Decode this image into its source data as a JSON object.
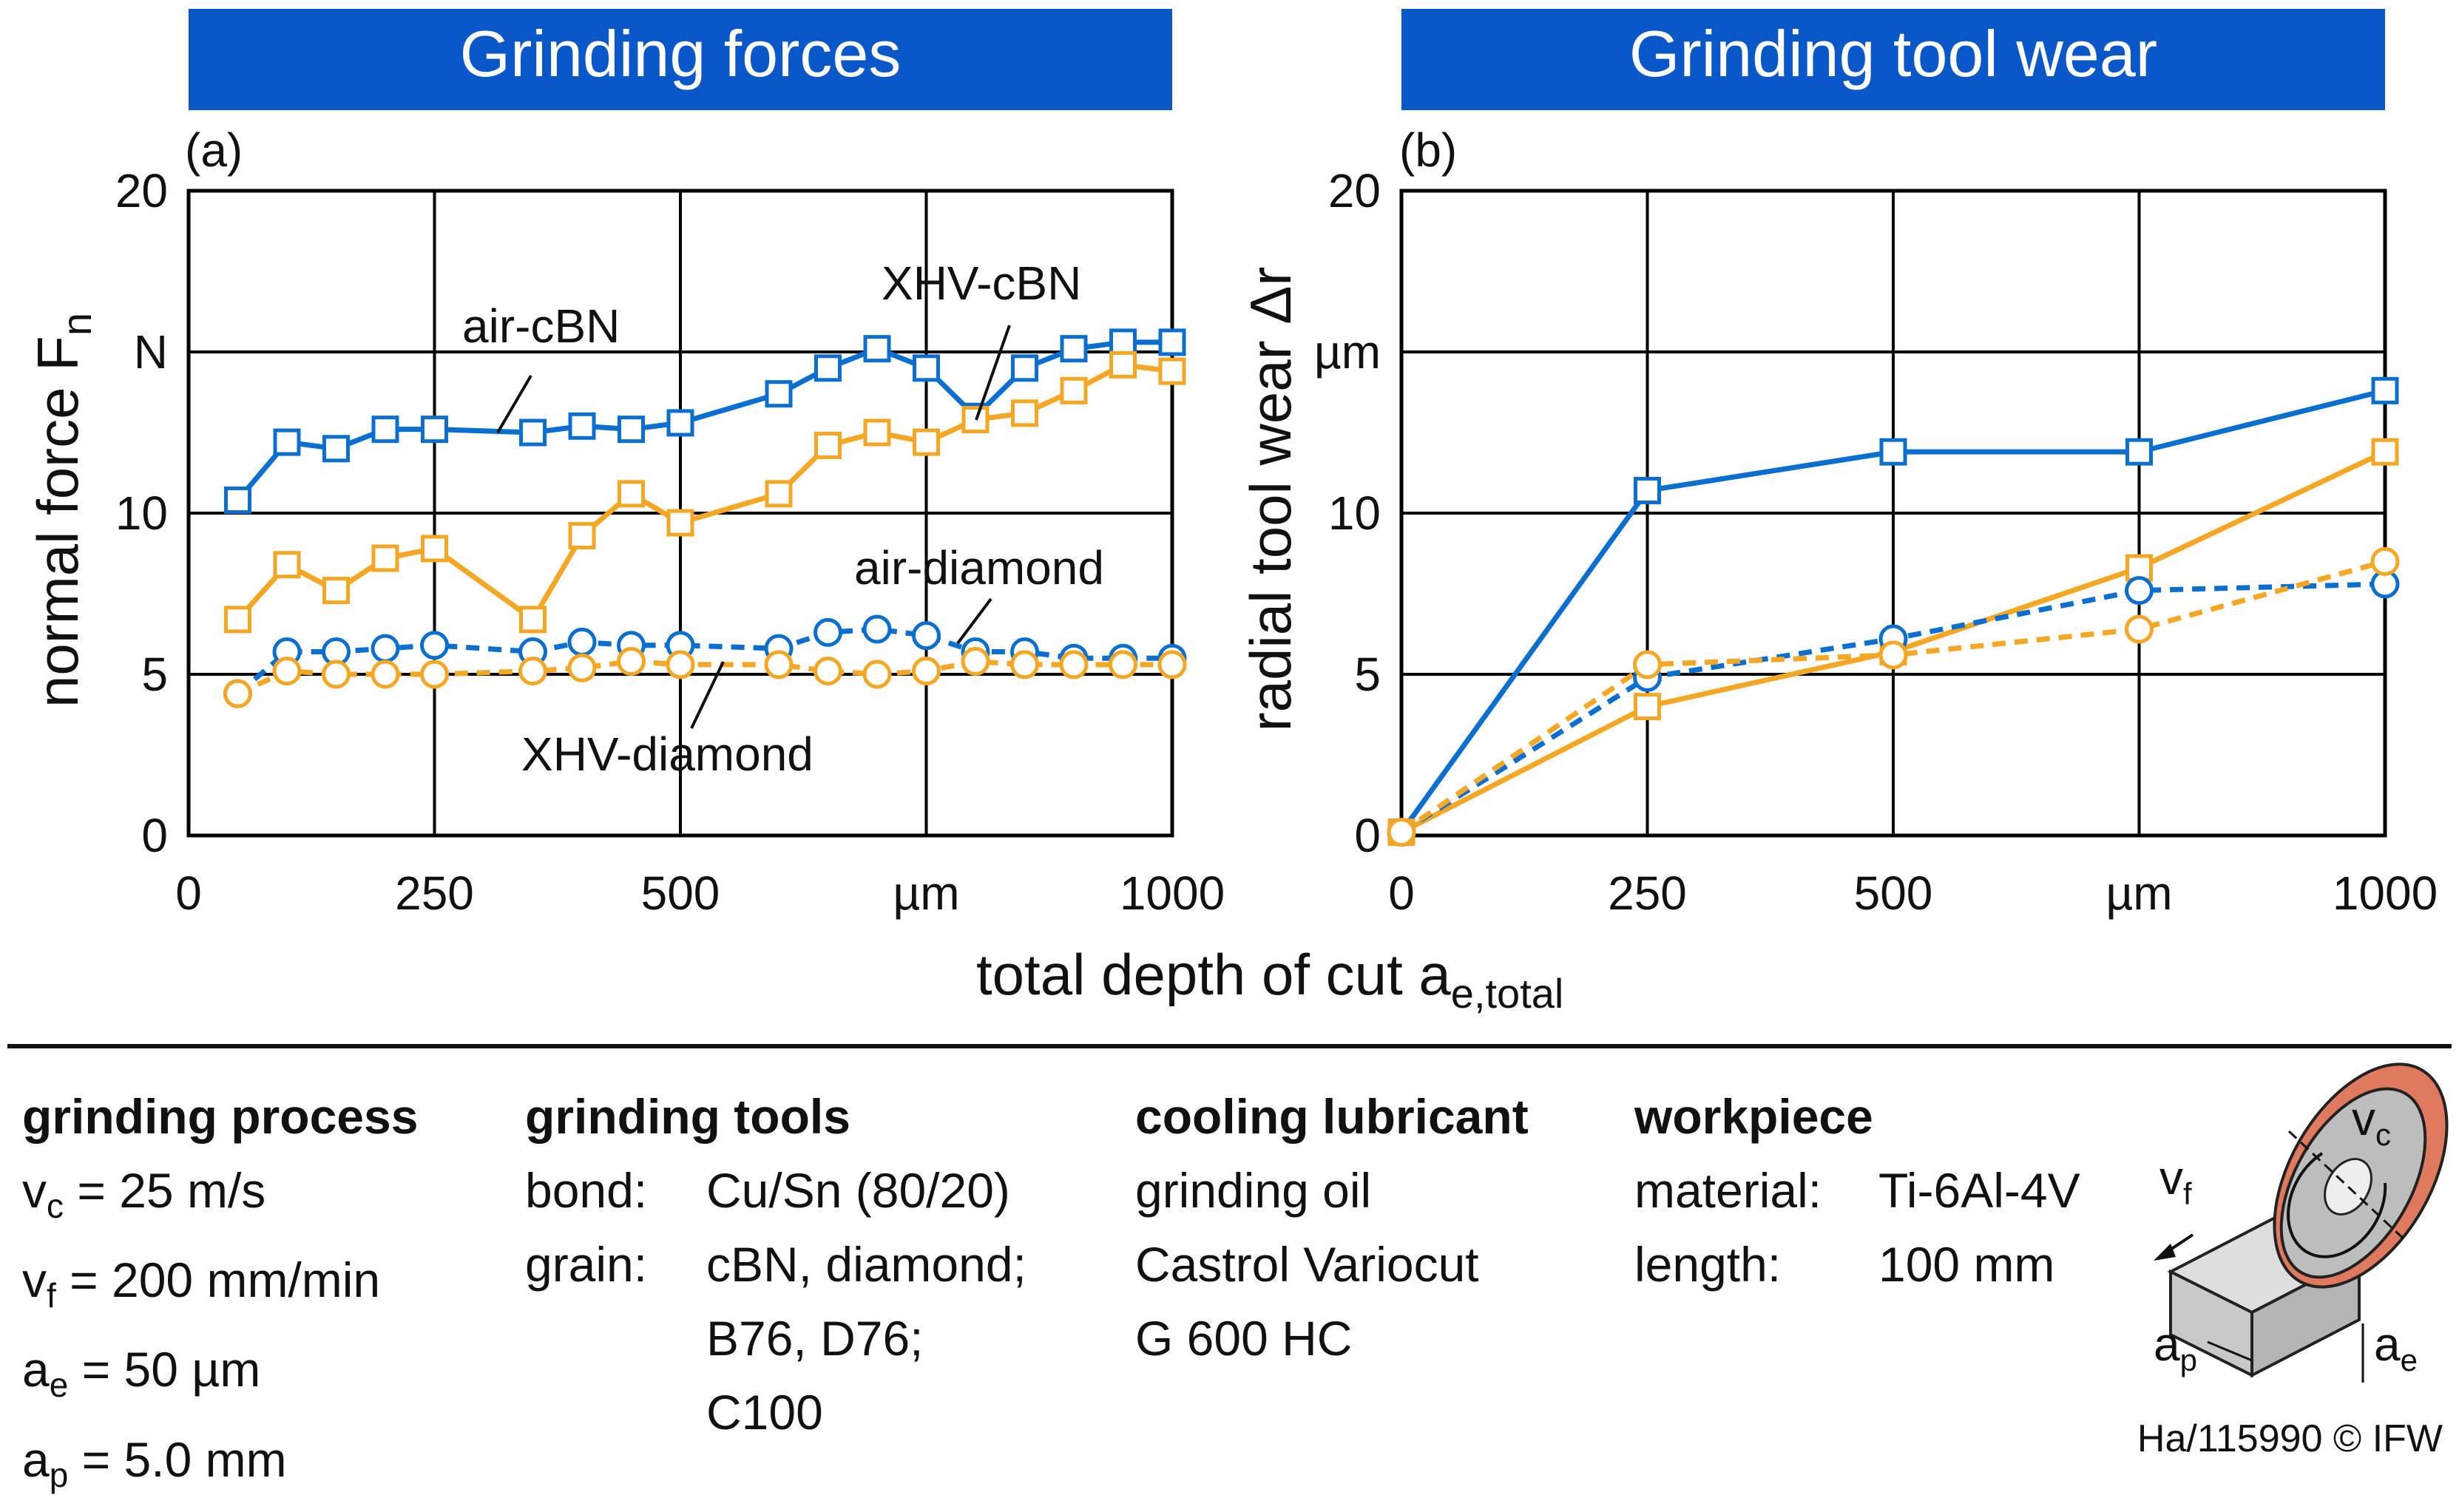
{
  "colors": {
    "blue": "#0a6fd1",
    "orange": "#f5a623",
    "banner": "#0a57c9",
    "grid": "#000000"
  },
  "banners": {
    "left": "Grinding forces",
    "right": "Grinding tool wear"
  },
  "chart_data": [
    {
      "type": "line",
      "panel": "(a)",
      "title": "Grinding forces",
      "ylabel_main": "normal force F",
      "ylabel_sub": "n",
      "y_unit": "N",
      "x_unit": "µm",
      "ylim": [
        0,
        20
      ],
      "xlim": [
        0,
        1000
      ],
      "y_ticks": [
        "0",
        "5",
        "10",
        "",
        "20"
      ],
      "x_ticks": [
        "0",
        "250",
        "500",
        "",
        "1000"
      ],
      "series": [
        {
          "name": "air-cBN",
          "color": "blue",
          "marker": "square",
          "dash": false,
          "x": [
            50,
            100,
            150,
            200,
            250,
            350,
            400,
            450,
            500,
            600,
            650,
            700,
            750,
            800,
            850,
            900,
            950,
            1000
          ],
          "y": [
            10.4,
            12.2,
            12.0,
            12.6,
            12.6,
            12.5,
            12.7,
            12.6,
            12.8,
            13.7,
            14.5,
            15.1,
            14.5,
            13.0,
            14.5,
            15.1,
            15.3,
            15.3
          ]
        },
        {
          "name": "XHV-cBN",
          "color": "orange",
          "marker": "square",
          "dash": false,
          "x": [
            50,
            100,
            150,
            200,
            250,
            350,
            400,
            450,
            500,
            600,
            650,
            700,
            750,
            800,
            850,
            900,
            950,
            1000
          ],
          "y": [
            6.7,
            8.4,
            7.6,
            8.6,
            8.9,
            6.7,
            9.3,
            10.6,
            9.7,
            10.6,
            12.1,
            12.5,
            12.2,
            12.9,
            13.1,
            13.8,
            14.6,
            14.4
          ]
        },
        {
          "name": "air-diamond",
          "color": "blue",
          "marker": "circle",
          "dash": true,
          "x": [
            50,
            100,
            150,
            200,
            250,
            350,
            400,
            450,
            500,
            600,
            650,
            700,
            750,
            800,
            850,
            900,
            950,
            1000
          ],
          "y": [
            4.4,
            5.7,
            5.7,
            5.8,
            5.9,
            5.7,
            6.0,
            5.9,
            5.9,
            5.8,
            6.3,
            6.4,
            6.2,
            5.7,
            5.7,
            5.5,
            5.5,
            5.5
          ]
        },
        {
          "name": "XHV-diamond",
          "color": "orange",
          "marker": "circle",
          "dash": true,
          "x": [
            50,
            100,
            150,
            200,
            250,
            350,
            400,
            450,
            500,
            600,
            650,
            700,
            750,
            800,
            850,
            900,
            950,
            1000
          ],
          "y": [
            4.4,
            5.1,
            5.0,
            5.0,
            5.0,
            5.1,
            5.2,
            5.4,
            5.3,
            5.3,
            5.1,
            5.0,
            5.1,
            5.4,
            5.3,
            5.3,
            5.3,
            5.3
          ]
        }
      ],
      "annotations": [
        "air-cBN",
        "XHV-cBN",
        "air-diamond",
        "XHV-diamond"
      ]
    },
    {
      "type": "line",
      "panel": "(b)",
      "title": "Grinding tool wear",
      "ylabel": "radial tool wear Δr",
      "y_unit": "µm",
      "x_unit": "µm",
      "ylim": [
        0,
        20
      ],
      "xlim": [
        0,
        1000
      ],
      "y_ticks": [
        "0",
        "5",
        "10",
        "",
        "20"
      ],
      "x_ticks": [
        "0",
        "250",
        "500",
        "",
        "1000"
      ],
      "series": [
        {
          "name": "air-cBN",
          "color": "blue",
          "marker": "square",
          "dash": false,
          "x": [
            0,
            250,
            500,
            750,
            1000
          ],
          "y": [
            0.1,
            10.7,
            11.9,
            11.9,
            13.8
          ]
        },
        {
          "name": "XHV-cBN",
          "color": "orange",
          "marker": "square",
          "dash": false,
          "x": [
            0,
            250,
            500,
            750,
            1000
          ],
          "y": [
            0.1,
            4.0,
            5.7,
            8.3,
            11.9
          ]
        },
        {
          "name": "air-diamond",
          "color": "blue",
          "marker": "circle",
          "dash": true,
          "x": [
            0,
            250,
            500,
            750,
            1000
          ],
          "y": [
            0.1,
            4.9,
            6.1,
            7.6,
            7.8
          ]
        },
        {
          "name": "XHV-diamond",
          "color": "orange",
          "marker": "circle",
          "dash": true,
          "x": [
            0,
            250,
            500,
            750,
            1000
          ],
          "y": [
            0.1,
            5.3,
            5.6,
            6.4,
            8.5
          ]
        }
      ]
    }
  ],
  "xlabel_main": "total depth of cut a",
  "xlabel_sub": "e,total",
  "info": {
    "process": {
      "heading": "grinding process",
      "rows": [
        {
          "sym": "v",
          "sub": "c",
          "val": "= 25 m/s"
        },
        {
          "sym": "v",
          "sub": "f",
          "val": "= 200 mm/min"
        },
        {
          "sym": "a",
          "sub": "e",
          "val": "= 50 µm"
        },
        {
          "sym": "a",
          "sub": "p",
          "val": "= 5.0 mm"
        }
      ]
    },
    "tools": {
      "heading": "grinding tools",
      "bond_label": "bond:",
      "bond_value": "Cu/Sn  (80/20)",
      "grain_label": "grain:",
      "grain_lines": [
        "cBN, diamond;",
        "B76, D76;",
        "C100"
      ]
    },
    "coolant": {
      "heading": "cooling lubricant",
      "lines": [
        "grinding oil",
        "Castrol  Variocut",
        "G 600 HC"
      ]
    },
    "workpiece": {
      "heading": "workpiece",
      "material_label": "material:",
      "material_value": "Ti-6Al-4V",
      "length_label": "length:",
      "length_value": "100 mm"
    }
  },
  "sketch": {
    "vc_sym": "v",
    "vc_sub": "c",
    "vf_sym": "v",
    "vf_sub": "f",
    "ap_sym": "a",
    "ap_sub": "p",
    "ae_sym": "a",
    "ae_sub": "e"
  },
  "footer": "Ha/115990 © IFW"
}
